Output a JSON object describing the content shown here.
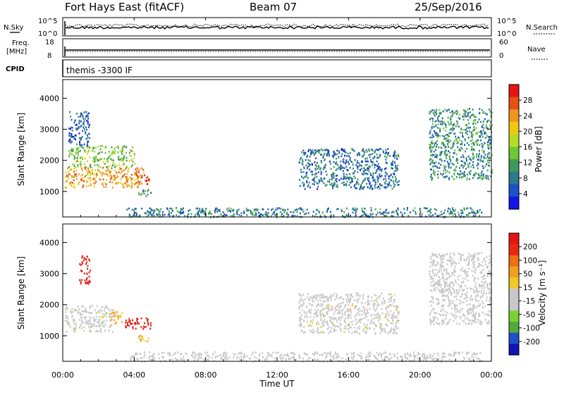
{
  "header": {
    "station": "Fort Hays East (fitACF)",
    "beam": "Beam 07",
    "date": "25/Sep/2016"
  },
  "summary_panels": {
    "nsky_label": "N.Sky",
    "nsearch_label": "N.Search",
    "freq_label_line1": "Freq.",
    "freq_label_line2": "[MHz]",
    "nave_label": "Nave",
    "cpid_label": "CPID",
    "cpid_text": "themis -3300 IF",
    "noise_ticks_left": [
      "10^5",
      "10^0"
    ],
    "noise_ticks_right": [
      "10^5",
      "10^0"
    ],
    "freq_ticks_left": [
      "18",
      "8"
    ],
    "nave_ticks_right": [
      "60",
      "0"
    ]
  },
  "colors": {
    "power": [
      "#1414e6",
      "#1e50c8",
      "#2a7a8a",
      "#3c9a5c",
      "#6ec832",
      "#b4dc28",
      "#f0c814",
      "#f0961e",
      "#e65014",
      "#e61414"
    ],
    "velocity": [
      "#1414b4",
      "#1e50c8",
      "#50aa3c",
      "#7ad232",
      "#c8c8c8",
      "#c8c8c8",
      "#f0c828",
      "#f0a01e",
      "#f06e14",
      "#e62814",
      "#e61414"
    ]
  },
  "chart_data": [
    {
      "type": "heatmap",
      "name": "power",
      "ylabel": "Slant Range [km]",
      "yticks": [
        "1000",
        "2000",
        "3000",
        "4000"
      ],
      "ylim": [
        180,
        4600
      ],
      "colorbar_label": "Power [dB]",
      "colorbar_ticks": [
        "4",
        "8",
        "12",
        "16",
        "20",
        "24",
        "28"
      ],
      "colorbar_range": [
        0,
        30
      ],
      "regions": [
        {
          "x": [
            0.1,
            4.5
          ],
          "y": [
            1150,
            1800
          ],
          "value": 22
        },
        {
          "x": [
            0.3,
            4.0
          ],
          "y": [
            1800,
            2500
          ],
          "value": 14
        },
        {
          "x": [
            0.3,
            1.5
          ],
          "y": [
            2500,
            3600
          ],
          "value": 6
        },
        {
          "x": [
            4.1,
            4.9
          ],
          "y": [
            1250,
            1550
          ],
          "value": 27
        },
        {
          "x": [
            4.2,
            4.9
          ],
          "y": [
            850,
            1100
          ],
          "value": 9
        },
        {
          "x": [
            13.2,
            18.8
          ],
          "y": [
            1100,
            2400
          ],
          "value": 7
        },
        {
          "x": [
            20.5,
            24.0
          ],
          "y": [
            1400,
            3700
          ],
          "value": 9
        },
        {
          "x": [
            3.5,
            23.5
          ],
          "y": [
            200,
            500
          ],
          "value": 8
        }
      ]
    },
    {
      "type": "heatmap",
      "name": "velocity",
      "ylabel": "Slant Range [km]",
      "yticks": [
        "1000",
        "2000",
        "3000",
        "4000"
      ],
      "ylim": [
        180,
        4600
      ],
      "colorbar_label": "Velocity [m s⁻¹]",
      "colorbar_ticks": [
        "200",
        "100",
        "50",
        "15",
        "-15",
        "-50",
        "-100",
        "-200"
      ],
      "colorbar_range": [
        -250,
        250
      ],
      "regions": [
        {
          "x": [
            0.1,
            2.8
          ],
          "y": [
            1150,
            2000
          ],
          "value": 0
        },
        {
          "x": [
            2.6,
            3.3
          ],
          "y": [
            1400,
            1800
          ],
          "value": 70
        },
        {
          "x": [
            3.3,
            4.9
          ],
          "y": [
            1250,
            1600
          ],
          "value": 200
        },
        {
          "x": [
            0.9,
            1.5
          ],
          "y": [
            2700,
            3600
          ],
          "value": 200
        },
        {
          "x": [
            4.2,
            4.9
          ],
          "y": [
            850,
            1050
          ],
          "value": 70
        },
        {
          "x": [
            13.2,
            18.8
          ],
          "y": [
            1100,
            2400
          ],
          "value": 0
        },
        {
          "x": [
            20.5,
            24.0
          ],
          "y": [
            1400,
            3700
          ],
          "value": -20
        },
        {
          "x": [
            3.5,
            23.5
          ],
          "y": [
            200,
            500
          ],
          "value": -40
        }
      ]
    }
  ],
  "time_axis": {
    "xlabel": "Time UT",
    "ticks": [
      "00:00",
      "04:00",
      "08:00",
      "12:00",
      "16:00",
      "20:00",
      "00:00"
    ],
    "range_hours": [
      0,
      24
    ]
  }
}
